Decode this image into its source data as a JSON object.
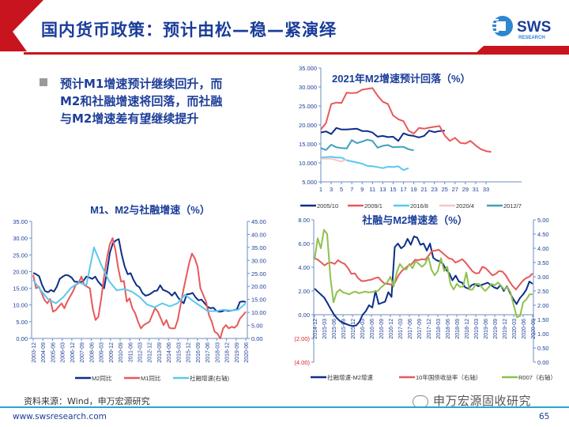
{
  "slide": {
    "title": "国内货币政策：预计由松—稳—紧演绎",
    "bullet": "预计M1增速预计继续回升，而M2和社融增速将回落，而社融与M2增速差有望继续提升",
    "source": "资料来源：Wind，申万宏源研究",
    "url": "www.swsresearch.com",
    "page_number": "65",
    "wechat_label": "申万宏源固收研究",
    "logo": {
      "text": "SWS",
      "subtext": "RESEARCH"
    },
    "colors": {
      "brand_red": "#c8141e",
      "brand_blue": "#1a3d9a",
      "footer_line": "#29a3d9"
    }
  },
  "chart_data": [
    {
      "id": "m2-2021",
      "type": "line",
      "title": "2021年M2增速预计回落（%）",
      "xlabel": "",
      "ylabel": "",
      "ylim": [
        5,
        35
      ],
      "yticks": [
        "5.000",
        "10.000",
        "15.000",
        "20.000",
        "25.000",
        "30.000",
        "35.000"
      ],
      "xlim": [
        1,
        34
      ],
      "xticks": [
        "1",
        "3",
        "5",
        "7",
        "9",
        "11",
        "13",
        "15",
        "17",
        "19",
        "21",
        "23",
        "25",
        "27",
        "29",
        "31",
        "33"
      ],
      "legend_position": "bottom",
      "series": [
        {
          "name": "2005/10",
          "color": "#0d2f8a",
          "values": [
            18.0,
            18.3,
            17.6,
            19.2,
            18.8,
            18.8,
            18.9,
            19.0,
            18.4,
            18.4,
            18.0,
            16.9,
            17.1,
            16.8,
            16.9,
            15.8,
            17.8,
            17.3,
            17.1,
            16.7,
            17.1,
            18.5,
            18.1,
            18.4,
            18.5
          ]
        },
        {
          "name": "2009/1",
          "color": "#e8585a",
          "values": [
            18.8,
            20.5,
            25.5,
            25.9,
            25.8,
            28.5,
            28.4,
            28.5,
            29.3,
            29.5,
            29.7,
            27.7,
            26.1,
            25.5,
            22.5,
            21.5,
            21.0,
            18.5,
            17.7,
            19.2,
            19.0,
            19.3,
            19.5,
            19.7,
            17.2,
            15.8,
            16.6,
            15.3,
            15.1,
            15.8,
            14.6,
            13.6,
            13.1,
            12.9
          ]
        },
        {
          "name": "2016/8",
          "color": "#5bc8ef",
          "values": [
            11.4,
            11.5,
            11.6,
            11.4,
            11.4,
            10.7,
            10.4,
            10.1,
            9.8,
            9.2,
            9.1,
            8.9,
            8.6,
            9.0,
            8.9,
            9.1,
            8.1,
            8.6
          ]
        },
        {
          "name": "2020/4",
          "color": "#f7c6c6",
          "values": [
            11.1,
            11.1,
            11.1,
            10.7,
            10.4,
            10.9
          ]
        },
        {
          "name": "2012/7",
          "color": "#3fa1bd",
          "values": [
            13.9,
            13.4,
            14.8,
            14.1,
            13.9,
            13.8,
            16.0,
            15.2,
            15.6,
            16.1,
            15.8,
            14.0,
            14.5,
            14.7,
            14.1,
            14.2,
            14.2,
            13.6,
            13.3
          ]
        }
      ]
    },
    {
      "id": "m1-m2-tsf",
      "type": "line",
      "title": "M1、M2与社融增速（%）",
      "ylim": [
        0,
        35
      ],
      "yticks": [
        "0.00",
        "5.00",
        "10.00",
        "15.00",
        "20.00",
        "25.00",
        "30.00",
        "35.00"
      ],
      "y2lim": [
        0,
        45
      ],
      "y2ticks": [
        "0.00",
        "5.00",
        "10.00",
        "15.00",
        "20.00",
        "25.00",
        "30.00",
        "35.00",
        "40.00",
        "45.00"
      ],
      "xticks": [
        "2003-12",
        "2004-09",
        "2005-06",
        "2006-03",
        "2006-12",
        "2007-09",
        "2008-06",
        "2009-03",
        "2009-12",
        "2010-09",
        "2011-06",
        "2012-03",
        "2012-12",
        "2013-09",
        "2014-06",
        "2015-03",
        "2015-12",
        "2016-09",
        "2017-06",
        "2018-03",
        "2018-12",
        "2019-09",
        "2020-06"
      ],
      "legend_position": "bottom",
      "series": [
        {
          "name": "M2同比",
          "color": "#0d2f8a",
          "axis": "left",
          "values": [
            19.6,
            19.2,
            18.6,
            16.0,
            14.2,
            13.8,
            14.5,
            14.0,
            15.5,
            17.8,
            18.5,
            19.0,
            18.8,
            18.2,
            17.0,
            16.9,
            16.8,
            17.2,
            18.5,
            18.2,
            17.8,
            18.5,
            17.0,
            16.0,
            15.0,
            20.0,
            25.7,
            28.5,
            29.3,
            29.7,
            25.0,
            21.5,
            19.2,
            19.5,
            17.5,
            15.9,
            15.3,
            13.6,
            12.8,
            13.0,
            13.5,
            14.2,
            14.3,
            15.9,
            14.5,
            14.2,
            13.7,
            12.8,
            13.8,
            12.3,
            11.3,
            10.5,
            13.2,
            13.3,
            13.6,
            12.3,
            11.4,
            11.6,
            10.6,
            9.5,
            9.0,
            9.2,
            8.3,
            8.0,
            8.1,
            8.5,
            8.2,
            8.3,
            8.5,
            8.7,
            10.9,
            11.1,
            10.9
          ]
        },
        {
          "name": "M1同比",
          "color": "#e8585a",
          "axis": "left",
          "values": [
            19.0,
            15.0,
            15.5,
            13.5,
            11.5,
            10.5,
            11.8,
            8.0,
            8.5,
            9.5,
            10.5,
            9.0,
            11.0,
            12.5,
            14.0,
            16.0,
            16.5,
            18.5,
            16.0,
            15.5,
            15.0,
            9.0,
            5.5,
            6.5,
            12.0,
            18.5,
            24.0,
            28.0,
            30.0,
            26.5,
            21.0,
            17.0,
            17.2,
            11.0,
            12.0,
            9.0,
            7.5,
            5.0,
            3.0,
            4.0,
            4.5,
            5.0,
            7.0,
            9.0,
            8.0,
            6.0,
            4.0,
            5.5,
            3.2,
            3.0,
            3.0,
            5.5,
            10.0,
            14.5,
            18.5,
            22.5,
            25.4,
            24.0,
            21.5,
            15.0,
            13.0,
            11.0,
            7.0,
            5.0,
            2.0,
            1.5,
            0.0,
            3.0,
            4.0,
            3.0,
            3.5,
            3.2,
            4.0,
            6.0,
            6.9,
            8.0
          ]
        },
        {
          "name": "社融增速(右轴)",
          "color": "#5bc8ef",
          "axis": "right",
          "values": [
            22.5,
            18.5,
            15.0,
            13.5,
            16.0,
            19.5,
            21.5,
            20.5,
            35.0,
            28.0,
            22.0,
            18.5,
            19.0,
            18.0,
            16.0,
            13.0,
            12.0,
            13.5,
            12.3,
            13.5,
            16.8,
            14.5,
            12.5,
            10.5,
            10.5,
            11.0,
            10.7,
            11.0,
            13.5
          ]
        }
      ]
    },
    {
      "id": "tsf-m2-spread",
      "type": "line",
      "title": "社融与M2增速差（%）",
      "ylim": [
        -4,
        8
      ],
      "yticks": [
        "(4.00)",
        "(2.00)",
        "0.00",
        "2.00",
        "4.00",
        "6.00",
        "8.00"
      ],
      "y2lim": [
        0,
        5
      ],
      "y2ticks": [
        "0.00",
        "0.50",
        "1.00",
        "1.50",
        "2.00",
        "2.50",
        "3.00",
        "3.50",
        "4.00",
        "4.50",
        "5.00"
      ],
      "xticks": [
        "2014-12",
        "2015-03",
        "2015-06",
        "2015-09",
        "2015-12",
        "2016-03",
        "2016-06",
        "2016-09",
        "2016-12",
        "2017-03",
        "2017-06",
        "2017-09",
        "2017-12",
        "2018-03",
        "2018-06",
        "2018-09",
        "2018-12",
        "2019-03",
        "2019-06",
        "2019-09",
        "2019-12",
        "2020-03",
        "2020-06",
        "2020-09"
      ],
      "legend_position": "bottom",
      "series": [
        {
          "name": "社融增速-M2增速",
          "color": "#0d2f8a",
          "axis": "left",
          "values": [
            2.2,
            1.95,
            1.7,
            1.45,
            1.0,
            0.5,
            0.05,
            -0.3,
            -0.55,
            -0.7,
            -0.8,
            -0.9,
            -0.95,
            -0.9,
            -0.6,
            0.0,
            0.3,
            0.8,
            0.6,
            2.0,
            0.9,
            1.0,
            1.1,
            1.9,
            1.5,
            5.7,
            6.0,
            5.6,
            5.8,
            6.4,
            5.9,
            6.6,
            6.5,
            5.9,
            6.0,
            5.4,
            6.0,
            4.8,
            4.6,
            4.5,
            4.3,
            3.8,
            3.5,
            2.9,
            3.3,
            2.8,
            2.7,
            2.3,
            2.2,
            2.5,
            2.6,
            2.4,
            2.5,
            2.6,
            2.7,
            2.5,
            2.3,
            2.2,
            2.5,
            2.0,
            2.4,
            1.8,
            1.3,
            0.9,
            1.4,
            1.7,
            2.1,
            2.8,
            2.6
          ]
        },
        {
          "name": "10年国债收益率（右轴）",
          "color": "#e8585a",
          "axis": "right",
          "values": [
            3.65,
            3.6,
            3.5,
            3.4,
            3.48,
            3.5,
            3.45,
            3.58,
            3.5,
            3.45,
            3.3,
            3.1,
            3.12,
            2.95,
            2.85,
            2.85,
            2.88,
            2.9,
            2.95,
            2.98,
            2.85,
            2.75,
            2.75,
            2.72,
            2.8,
            3.05,
            3.2,
            3.3,
            3.4,
            3.45,
            3.6,
            3.58,
            3.62,
            3.6,
            3.75,
            3.9,
            3.92,
            3.95,
            3.85,
            3.75,
            3.65,
            3.62,
            3.5,
            3.55,
            3.62,
            3.5,
            3.35,
            3.2,
            3.12,
            3.13,
            3.35,
            3.3,
            3.18,
            3.05,
            3.1,
            3.2,
            3.18,
            3.05,
            2.85,
            2.68,
            2.55,
            2.7,
            2.85,
            2.95,
            3.0,
            3.12
          ]
        },
        {
          "name": "R007（右轴）",
          "color": "#8fc04d",
          "axis": "right",
          "values": [
            3.6,
            4.35,
            4.0,
            4.65,
            4.5,
            3.0,
            2.1,
            2.45,
            2.55,
            2.45,
            2.42,
            2.38,
            2.45,
            2.48,
            2.42,
            2.45,
            2.48,
            2.45,
            2.46,
            2.48,
            2.5,
            2.62,
            2.72,
            2.8,
            3.0,
            2.65,
            3.15,
            3.45,
            3.3,
            3.25,
            3.45,
            3.3,
            3.55,
            3.45,
            3.35,
            3.45,
            3.7,
            3.25,
            3.05,
            3.2,
            3.65,
            3.2,
            3.35,
            2.75,
            2.55,
            2.75,
            2.65,
            2.65,
            3.15,
            2.55,
            2.55,
            2.75,
            2.75,
            2.62,
            2.5,
            2.62,
            2.75,
            2.7,
            2.8,
            2.68,
            2.55,
            2.65,
            2.45,
            2.0,
            1.58,
            1.62,
            2.1,
            2.2,
            2.38,
            2.38
          ]
        }
      ]
    }
  ]
}
